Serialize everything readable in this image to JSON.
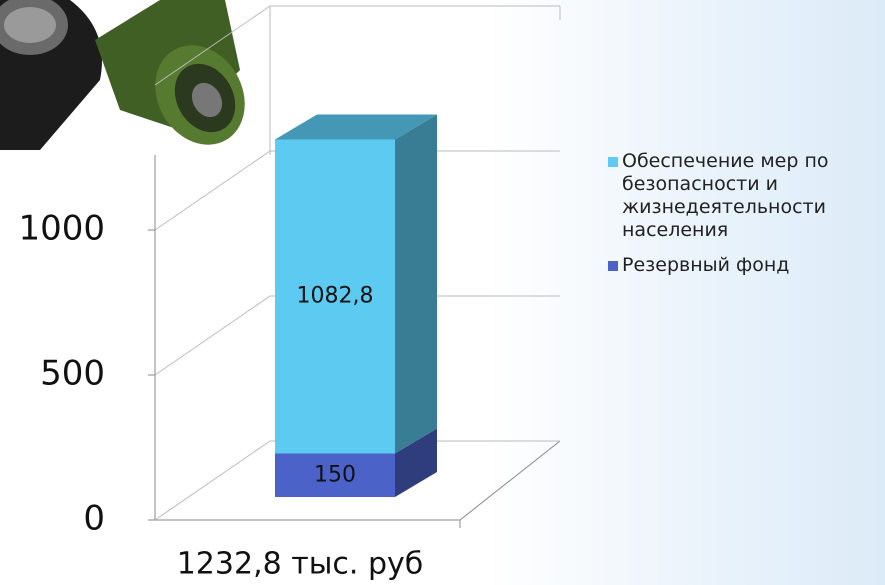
{
  "chart_data": {
    "type": "stacked-bar-3d",
    "categories": [
      "1232,8 тыс. руб"
    ],
    "series": [
      {
        "name": "Резервный фонд",
        "color": "#4b62c9",
        "values": [
          150
        ],
        "value_labels": [
          "150"
        ]
      },
      {
        "name": "Обеспечение мер по безопасности и жизнедеятельности населения",
        "color": "#5ccaf1",
        "values": [
          1082.8
        ],
        "value_labels": [
          "1082,8"
        ]
      }
    ],
    "ylim": [
      0,
      1500
    ],
    "yticks": [
      0,
      500,
      1000
    ],
    "grid": true
  }
}
